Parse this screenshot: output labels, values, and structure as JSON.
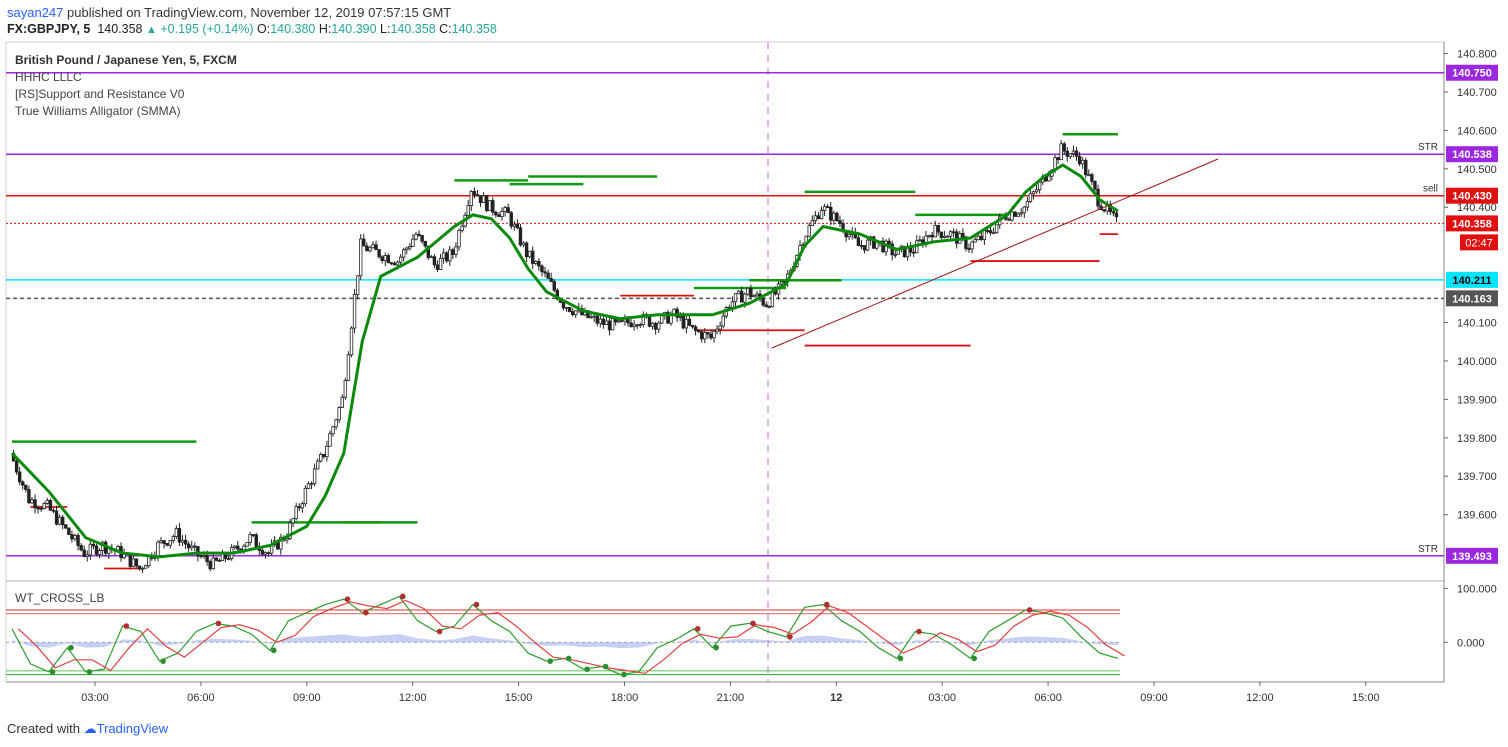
{
  "header": {
    "publisher": "sayan247",
    "published_text": " published on TradingView.com, November 12, 2019 07:57:15 GMT",
    "symbol": "FX:GBPJPY, 5",
    "last": "140.358",
    "change": "+0.195 (+0.14%)",
    "o_label": "O:",
    "o": "140.380",
    "h_label": "H:",
    "h": "140.390",
    "l_label": "L:",
    "l": "140.358",
    "c_label": "C:",
    "c": "140.358"
  },
  "legend": {
    "title": "British Pound / Japanese Yen, 5, FXCM",
    "indicators": [
      "HHHC LLLC",
      "[RS]Support and Resistance V0",
      "True Williams Alligator (SMMA)"
    ],
    "oscillator": "WT_CROSS_LB"
  },
  "footer": {
    "created_with": "Created with",
    "brand": "TradingView"
  },
  "colors": {
    "up": "#26a69a",
    "down": "#ef5350",
    "alligator": "#0a8a0a",
    "resistance": "#e01010",
    "support_green": "#119911",
    "purple": "#9c27e0",
    "cyan": "#00e5ff",
    "grey": "#555555",
    "trend": "#a01515"
  },
  "chart_data": {
    "type": "candlestick",
    "symbol": "GBPJPY",
    "timeframe": "5",
    "ylim": [
      139.43,
      140.83
    ],
    "y_ticks": [
      "140.800",
      "140.700",
      "140.600",
      "140.500",
      "140.400",
      "140.100",
      "140.000",
      "139.900",
      "139.800",
      "139.700",
      "139.600"
    ],
    "x_ticks": [
      "03:00",
      "06:00",
      "09:00",
      "12:00",
      "15:00",
      "18:00",
      "21:00",
      "12",
      "03:00",
      "06:00",
      "09:00",
      "12:00",
      "15:00"
    ],
    "horizontal_levels": [
      {
        "value": 140.75,
        "label": "140.750",
        "color": "purple"
      },
      {
        "value": 140.538,
        "label": "140.538",
        "color": "purple",
        "tag": "STR"
      },
      {
        "value": 140.43,
        "label": "140.430",
        "color": "red",
        "tag": "sell"
      },
      {
        "value": 140.358,
        "label": "140.358",
        "color": "red-dotted"
      },
      {
        "value": 140.211,
        "label": "140.211",
        "color": "cyan"
      },
      {
        "value": 140.163,
        "label": "140.163",
        "color": "grey-dashed"
      },
      {
        "value": 139.493,
        "label": "139.493",
        "color": "purple",
        "tag": "STR"
      }
    ],
    "countdown": "02:47",
    "price_path": [
      [
        0,
        139.76
      ],
      [
        1,
        139.64
      ],
      [
        2,
        139.62
      ],
      [
        3,
        139.56
      ],
      [
        4,
        139.5
      ],
      [
        5,
        139.52
      ],
      [
        6,
        139.5
      ],
      [
        7,
        139.46
      ],
      [
        8,
        139.52
      ],
      [
        9,
        139.55
      ],
      [
        10,
        139.5
      ],
      [
        11,
        139.47
      ],
      [
        12,
        139.5
      ],
      [
        13,
        139.54
      ],
      [
        14,
        139.5
      ],
      [
        15,
        139.55
      ],
      [
        16,
        139.66
      ],
      [
        17,
        139.76
      ],
      [
        18,
        139.9
      ],
      [
        19,
        140.3
      ],
      [
        20,
        140.28
      ],
      [
        21,
        140.26
      ],
      [
        22,
        140.33
      ],
      [
        23,
        140.25
      ],
      [
        24,
        140.28
      ],
      [
        25,
        140.45
      ],
      [
        26,
        140.4
      ],
      [
        27,
        140.38
      ],
      [
        28,
        140.28
      ],
      [
        29,
        140.22
      ],
      [
        30,
        140.15
      ],
      [
        31,
        140.12
      ],
      [
        32,
        140.1
      ],
      [
        33,
        140.09
      ],
      [
        34,
        140.11
      ],
      [
        35,
        140.1
      ],
      [
        36,
        140.12
      ],
      [
        37,
        140.08
      ],
      [
        38,
        140.06
      ],
      [
        39,
        140.15
      ],
      [
        40,
        140.18
      ],
      [
        41,
        140.15
      ],
      [
        42,
        140.2
      ],
      [
        43,
        140.32
      ],
      [
        44,
        140.4
      ],
      [
        45,
        140.36
      ],
      [
        46,
        140.3
      ],
      [
        47,
        140.31
      ],
      [
        48,
        140.28
      ],
      [
        49,
        140.29
      ],
      [
        50,
        140.34
      ],
      [
        51,
        140.33
      ],
      [
        52,
        140.3
      ],
      [
        53,
        140.33
      ],
      [
        54,
        140.38
      ],
      [
        55,
        140.4
      ],
      [
        56,
        140.47
      ],
      [
        57,
        140.55
      ],
      [
        58,
        140.53
      ],
      [
        59,
        140.42
      ],
      [
        60,
        140.36
      ]
    ],
    "alligator_path": [
      [
        0,
        139.76
      ],
      [
        2,
        139.66
      ],
      [
        4,
        139.54
      ],
      [
        6,
        139.5
      ],
      [
        8,
        139.49
      ],
      [
        10,
        139.5
      ],
      [
        12,
        139.5
      ],
      [
        14,
        139.52
      ],
      [
        16,
        139.57
      ],
      [
        17,
        139.65
      ],
      [
        18,
        139.76
      ],
      [
        19,
        140.05
      ],
      [
        20,
        140.22
      ],
      [
        22,
        140.27
      ],
      [
        24,
        140.35
      ],
      [
        25,
        140.38
      ],
      [
        26,
        140.37
      ],
      [
        27,
        140.32
      ],
      [
        28,
        140.24
      ],
      [
        29,
        140.18
      ],
      [
        31,
        140.13
      ],
      [
        33,
        140.11
      ],
      [
        35,
        140.12
      ],
      [
        37,
        140.12
      ],
      [
        38,
        140.12
      ],
      [
        40,
        140.15
      ],
      [
        42,
        140.2
      ],
      [
        43,
        140.3
      ],
      [
        44,
        140.35
      ],
      [
        46,
        140.33
      ],
      [
        48,
        140.29
      ],
      [
        50,
        140.31
      ],
      [
        52,
        140.32
      ],
      [
        54,
        140.38
      ],
      [
        55,
        140.44
      ],
      [
        56,
        140.48
      ],
      [
        57,
        140.51
      ],
      [
        58,
        140.48
      ],
      [
        59,
        140.42
      ],
      [
        60,
        140.39
      ]
    ],
    "oscillator": {
      "name": "WT_CROSS_LB",
      "ylim": [
        -70,
        110
      ],
      "y_ticks": [
        "100.000",
        "0.000"
      ],
      "wt1": [
        [
          0,
          25
        ],
        [
          1,
          -40
        ],
        [
          2,
          -55
        ],
        [
          3,
          -10
        ],
        [
          4,
          -55
        ],
        [
          5,
          -50
        ],
        [
          6,
          30
        ],
        [
          7,
          20
        ],
        [
          8,
          -35
        ],
        [
          9,
          -20
        ],
        [
          10,
          20
        ],
        [
          11,
          35
        ],
        [
          12,
          30
        ],
        [
          13,
          15
        ],
        [
          14,
          -15
        ],
        [
          15,
          40
        ],
        [
          16,
          55
        ],
        [
          17,
          70
        ],
        [
          18,
          80
        ],
        [
          19,
          55
        ],
        [
          20,
          70
        ],
        [
          21,
          85
        ],
        [
          22,
          40
        ],
        [
          23,
          20
        ],
        [
          24,
          30
        ],
        [
          25,
          70
        ],
        [
          26,
          40
        ],
        [
          27,
          20
        ],
        [
          28,
          -20
        ],
        [
          29,
          -35
        ],
        [
          30,
          -30
        ],
        [
          31,
          -50
        ],
        [
          32,
          -45
        ],
        [
          33,
          -60
        ],
        [
          34,
          -55
        ],
        [
          35,
          -10
        ],
        [
          36,
          5
        ],
        [
          37,
          25
        ],
        [
          38,
          -10
        ],
        [
          39,
          30
        ],
        [
          40,
          35
        ],
        [
          41,
          20
        ],
        [
          42,
          10
        ],
        [
          43,
          65
        ],
        [
          44,
          70
        ],
        [
          45,
          40
        ],
        [
          46,
          20
        ],
        [
          47,
          -10
        ],
        [
          48,
          -30
        ],
        [
          49,
          20
        ],
        [
          50,
          15
        ],
        [
          51,
          -5
        ],
        [
          52,
          -30
        ],
        [
          53,
          20
        ],
        [
          54,
          40
        ],
        [
          55,
          60
        ],
        [
          56,
          55
        ],
        [
          57,
          45
        ],
        [
          58,
          10
        ],
        [
          59,
          -20
        ],
        [
          60,
          -30
        ]
      ]
    }
  }
}
